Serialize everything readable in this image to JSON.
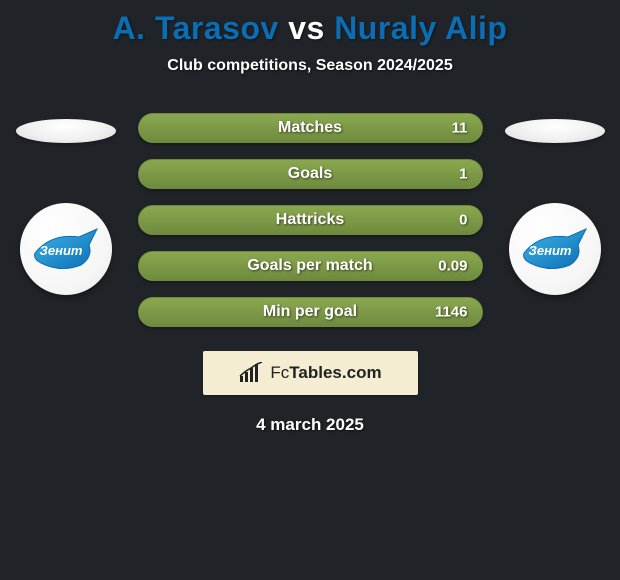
{
  "background_color": "#202428",
  "title": {
    "player1": "A. Tarasov",
    "vs": "vs",
    "player2": "Nuraly Alip",
    "player1_color": "#0b6db3",
    "vs_color": "#ffffff",
    "player2_color": "#0b6db3",
    "fontsize": 32
  },
  "subtitle": {
    "text": "Club competitions, Season 2024/2025",
    "fontsize": 16,
    "color": "#ffffff"
  },
  "stats": {
    "bar_bg_color": "#8aa84f",
    "bar_fill_color": "#8aa84f",
    "bar_border_color": "#6f8a3e",
    "label_color": "#ffffff",
    "value_color": "#ffffff",
    "items": [
      {
        "label": "Matches",
        "value": "11",
        "fill_pct": 100
      },
      {
        "label": "Goals",
        "value": "1",
        "fill_pct": 100
      },
      {
        "label": "Hattricks",
        "value": "0",
        "fill_pct": 100
      },
      {
        "label": "Goals per match",
        "value": "0.09",
        "fill_pct": 100
      },
      {
        "label": "Min per goal",
        "value": "1146",
        "fill_pct": 100
      }
    ]
  },
  "clubs": {
    "left": {
      "name": "zenit-badge",
      "text": "Зенит",
      "primary": "#1f9bd8",
      "secondary": "#0b6db3"
    },
    "right": {
      "name": "zenit-badge",
      "text": "Зенит",
      "primary": "#1f9bd8",
      "secondary": "#0b6db3"
    }
  },
  "brand": {
    "box_bg": "#f4edd2",
    "text_color": "#222222",
    "text_prefix": "Fc",
    "text_main": "Tables.com",
    "chart_color": "#222222"
  },
  "date": {
    "text": "4 march 2025",
    "fontsize": 17,
    "color": "#ffffff"
  }
}
